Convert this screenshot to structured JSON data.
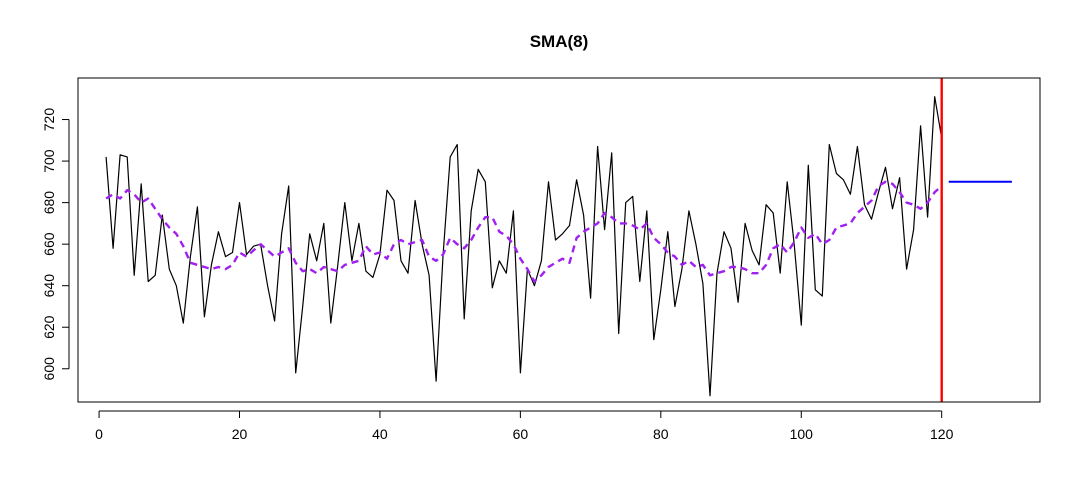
{
  "chart_data": {
    "type": "line",
    "title": "SMA(8)",
    "xlabel": "",
    "ylabel": "",
    "xlim": [
      -3,
      134
    ],
    "ylim": [
      584,
      740
    ],
    "x_ticks": [
      0,
      20,
      40,
      60,
      80,
      100,
      120
    ],
    "y_ticks": [
      600,
      620,
      640,
      660,
      680,
      700,
      720
    ],
    "grid": false,
    "legend": "none",
    "colors": {
      "series": "#000000",
      "sma": "#a020f0",
      "forecast": "#0000ff",
      "cutoff": "#ff0000",
      "axis": "#000000"
    },
    "series": [
      {
        "style": "solid",
        "x": [
          1,
          2,
          3,
          4,
          5,
          6,
          7,
          8,
          9,
          10,
          11,
          12,
          13,
          14,
          15,
          16,
          17,
          18,
          19,
          20,
          21,
          22,
          23,
          24,
          25,
          26,
          27,
          28,
          29,
          30,
          31,
          32,
          33,
          34,
          35,
          36,
          37,
          38,
          39,
          40,
          41,
          42,
          43,
          44,
          45,
          46,
          47,
          48,
          49,
          50,
          51,
          52,
          53,
          54,
          55,
          56,
          57,
          58,
          59,
          60,
          61,
          62,
          63,
          64,
          65,
          66,
          67,
          68,
          69,
          70,
          71,
          72,
          73,
          74,
          75,
          76,
          77,
          78,
          79,
          80,
          81,
          82,
          83,
          84,
          85,
          86,
          87,
          88,
          89,
          90,
          91,
          92,
          93,
          94,
          95,
          96,
          97,
          98,
          99,
          100,
          101,
          102,
          103,
          104,
          105,
          106,
          107,
          108,
          109,
          110,
          111,
          112,
          113,
          114,
          115,
          116,
          117,
          118,
          119,
          120
        ],
        "values": [
          702,
          658,
          703,
          702,
          645,
          689,
          642,
          645,
          674,
          648,
          640,
          622,
          654,
          678,
          625,
          650,
          666,
          654,
          656,
          680,
          655,
          659,
          660,
          640,
          623,
          665,
          688,
          598,
          630,
          665,
          652,
          670,
          622,
          650,
          680,
          652,
          670,
          647,
          644,
          655,
          686,
          681,
          652,
          646,
          681,
          660,
          645,
          594,
          655,
          702,
          708,
          624,
          676,
          696,
          690,
          639,
          652,
          646,
          676,
          598,
          648,
          640,
          652,
          690,
          662,
          665,
          669,
          691,
          674,
          634,
          707,
          667,
          704,
          617,
          680,
          683,
          642,
          676,
          614,
          638,
          666,
          630,
          648,
          676,
          660,
          641,
          587,
          646,
          666,
          658,
          632,
          670,
          657,
          650,
          679,
          675,
          646,
          690,
          660,
          621,
          698,
          638,
          635,
          708,
          694,
          691,
          684,
          707,
          679,
          672,
          685,
          697,
          677,
          692,
          648,
          667,
          717,
          673,
          731,
          711
        ]
      },
      {
        "style": "dashed",
        "x": [
          1,
          2,
          3,
          4,
          5,
          6,
          7,
          8,
          9,
          10,
          11,
          12,
          13,
          14,
          15,
          16,
          17,
          18,
          19,
          20,
          21,
          22,
          23,
          24,
          25,
          26,
          27,
          28,
          29,
          30,
          31,
          32,
          33,
          34,
          35,
          36,
          37,
          38,
          39,
          40,
          41,
          42,
          43,
          44,
          45,
          46,
          47,
          48,
          49,
          50,
          51,
          52,
          53,
          54,
          55,
          56,
          57,
          58,
          59,
          60,
          61,
          62,
          63,
          64,
          65,
          66,
          67,
          68,
          69,
          70,
          71,
          72,
          73,
          74,
          75,
          76,
          77,
          78,
          79,
          80,
          81,
          82,
          83,
          84,
          85,
          86,
          87,
          88,
          89,
          90,
          91,
          92,
          93,
          94,
          95,
          96,
          97,
          98,
          99,
          100,
          101,
          102,
          103,
          104,
          105,
          106,
          107,
          108,
          109,
          110,
          111,
          112,
          113,
          114,
          115,
          116,
          117,
          118,
          119,
          120
        ],
        "values": [
          682,
          684,
          682,
          686,
          684,
          680,
          682,
          677,
          672,
          668,
          665,
          659,
          651,
          650,
          649,
          648,
          649,
          648,
          650,
          656,
          654,
          657,
          660,
          657,
          654,
          656,
          658,
          651,
          647,
          648,
          646,
          649,
          648,
          647,
          650,
          651,
          652,
          659,
          655,
          656,
          653,
          660,
          662,
          660,
          661,
          662,
          654,
          652,
          655,
          663,
          660,
          658,
          662,
          668,
          673,
          673,
          666,
          664,
          660,
          653,
          648,
          642,
          645,
          649,
          651,
          653,
          651,
          663,
          666,
          668,
          670,
          675,
          673,
          670,
          670,
          669,
          667,
          670,
          663,
          660,
          656,
          654,
          650,
          652,
          649,
          650,
          645,
          646,
          647,
          649,
          649,
          648,
          646,
          646,
          650,
          658,
          660,
          656,
          661,
          668,
          663,
          665,
          660,
          662,
          668,
          669,
          670,
          675,
          678,
          681,
          688,
          690,
          689,
          685,
          680,
          679,
          677,
          680,
          685,
          688
        ]
      },
      {
        "style": "forecast",
        "x": [
          121,
          122,
          123,
          124,
          125,
          126,
          127,
          128,
          129,
          130
        ],
        "values": [
          690,
          690,
          690,
          690,
          690,
          690,
          690,
          690,
          690,
          690
        ]
      }
    ],
    "vline": {
      "x": 120
    }
  }
}
